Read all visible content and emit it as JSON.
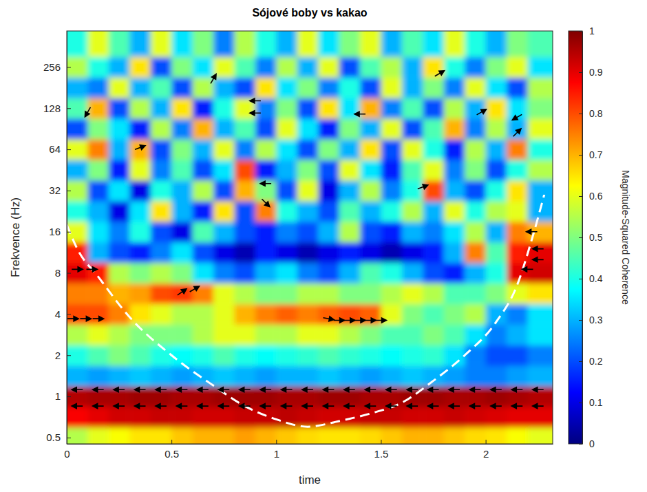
{
  "chart_data": {
    "type": "heatmap",
    "title": "Sójové boby vs kakao",
    "x_label": "time",
    "y_label": "Frekvence (Hz)",
    "log": "y",
    "xlim": [
      0,
      2.32
    ],
    "ylim": [
      0.45,
      470
    ],
    "xticks": [
      0,
      0.5,
      1,
      1.5,
      2
    ],
    "yticks": [
      0.5,
      1,
      2,
      4,
      8,
      16,
      32,
      64,
      128,
      256
    ],
    "x": [
      0.05,
      0.15,
      0.25,
      0.35,
      0.45,
      0.55,
      0.65,
      0.75,
      0.85,
      0.95,
      1.05,
      1.15,
      1.25,
      1.35,
      1.45,
      1.55,
      1.65,
      1.75,
      1.85,
      1.95,
      2.05,
      2.15,
      2.25
    ],
    "y": [
      0.5,
      0.71,
      1,
      1.41,
      2,
      2.83,
      4,
      5.66,
      8,
      11.3,
      16,
      22.6,
      32,
      45.3,
      64,
      90.5,
      128,
      181,
      256,
      362
    ],
    "values": [
      [
        0.55,
        0.6,
        0.62,
        0.65,
        0.65,
        0.68,
        0.7,
        0.7,
        0.72,
        0.7,
        0.68,
        0.66,
        0.65,
        0.65,
        0.66,
        0.68,
        0.7,
        0.7,
        0.68,
        0.66,
        0.65,
        0.62,
        0.6
      ],
      [
        0.88,
        0.9,
        0.92,
        0.92,
        0.93,
        0.93,
        0.92,
        0.92,
        0.93,
        0.93,
        0.94,
        0.93,
        0.92,
        0.92,
        0.93,
        0.93,
        0.92,
        0.92,
        0.93,
        0.92,
        0.91,
        0.9,
        0.9
      ],
      [
        0.95,
        0.96,
        0.96,
        0.97,
        0.97,
        0.96,
        0.96,
        0.97,
        0.97,
        0.97,
        0.96,
        0.96,
        0.97,
        0.97,
        0.96,
        0.96,
        0.97,
        0.97,
        0.96,
        0.96,
        0.97,
        0.96,
        0.95
      ],
      [
        0.3,
        0.28,
        0.3,
        0.32,
        0.3,
        0.28,
        0.3,
        0.32,
        0.3,
        0.28,
        0.3,
        0.3,
        0.32,
        0.3,
        0.28,
        0.3,
        0.32,
        0.3,
        0.28,
        0.25,
        0.25,
        0.28,
        0.3
      ],
      [
        0.4,
        0.45,
        0.5,
        0.45,
        0.4,
        0.38,
        0.4,
        0.45,
        0.4,
        0.38,
        0.4,
        0.42,
        0.45,
        0.42,
        0.4,
        0.38,
        0.4,
        0.42,
        0.35,
        0.25,
        0.2,
        0.2,
        0.25
      ],
      [
        0.55,
        0.6,
        0.55,
        0.5,
        0.5,
        0.5,
        0.55,
        0.6,
        0.6,
        0.55,
        0.55,
        0.6,
        0.6,
        0.55,
        0.5,
        0.45,
        0.45,
        0.5,
        0.45,
        0.35,
        0.25,
        0.3,
        0.35
      ],
      [
        0.8,
        0.8,
        0.75,
        0.65,
        0.6,
        0.55,
        0.55,
        0.6,
        0.7,
        0.75,
        0.78,
        0.75,
        0.78,
        0.8,
        0.78,
        0.6,
        0.5,
        0.45,
        0.5,
        0.55,
        0.3,
        0.25,
        0.35
      ],
      [
        0.75,
        0.75,
        0.7,
        0.72,
        0.8,
        0.82,
        0.75,
        0.6,
        0.55,
        0.5,
        0.5,
        0.55,
        0.55,
        0.5,
        0.5,
        0.55,
        0.6,
        0.55,
        0.45,
        0.45,
        0.5,
        0.6,
        0.65
      ],
      [
        0.9,
        0.85,
        0.55,
        0.5,
        0.55,
        0.5,
        0.35,
        0.25,
        0.2,
        0.3,
        0.35,
        0.25,
        0.2,
        0.3,
        0.45,
        0.4,
        0.3,
        0.2,
        0.15,
        0.3,
        0.4,
        0.9,
        0.92
      ],
      [
        0.85,
        0.3,
        0.2,
        0.15,
        0.25,
        0.35,
        0.2,
        0.1,
        0.05,
        0.15,
        0.1,
        0.05,
        0.1,
        0.15,
        0.1,
        0.05,
        0.1,
        0.15,
        0.3,
        0.75,
        0.45,
        0.85,
        0.9
      ],
      [
        0.6,
        0.35,
        0.25,
        0.4,
        0.2,
        0.1,
        0.45,
        0.3,
        0.2,
        0.15,
        0.25,
        0.2,
        0.3,
        0.55,
        0.2,
        0.15,
        0.3,
        0.25,
        0.35,
        0.55,
        0.3,
        0.75,
        0.7
      ],
      [
        0.4,
        0.3,
        0.1,
        0.35,
        0.65,
        0.3,
        0.15,
        0.65,
        0.2,
        0.75,
        0.4,
        0.3,
        0.2,
        0.45,
        0.3,
        0.4,
        0.55,
        0.3,
        0.6,
        0.4,
        0.55,
        0.6,
        0.3
      ],
      [
        0.55,
        0.2,
        0.35,
        0.1,
        0.4,
        0.3,
        0.55,
        0.2,
        0.7,
        0.5,
        0.2,
        0.6,
        0.1,
        0.3,
        0.55,
        0.25,
        0.4,
        0.8,
        0.3,
        0.2,
        0.4,
        0.65,
        0.3
      ],
      [
        0.3,
        0.5,
        0.15,
        0.6,
        0.25,
        0.45,
        0.2,
        0.35,
        0.8,
        0.15,
        0.3,
        0.5,
        0.2,
        0.6,
        0.35,
        0.15,
        0.45,
        0.6,
        0.25,
        0.5,
        0.2,
        0.4,
        0.55
      ],
      [
        0.6,
        0.75,
        0.3,
        0.7,
        0.2,
        0.5,
        0.3,
        0.6,
        0.25,
        0.55,
        0.35,
        0.2,
        0.5,
        0.3,
        0.65,
        0.2,
        0.6,
        0.4,
        0.15,
        0.55,
        0.3,
        0.75,
        0.4
      ],
      [
        0.2,
        0.5,
        0.35,
        0.15,
        0.55,
        0.25,
        0.7,
        0.3,
        0.45,
        0.2,
        0.6,
        0.35,
        0.15,
        0.5,
        0.3,
        0.6,
        0.2,
        0.45,
        0.7,
        0.25,
        0.55,
        0.3,
        0.6
      ],
      [
        0.45,
        0.7,
        0.2,
        0.55,
        0.3,
        0.65,
        0.15,
        0.4,
        0.6,
        0.25,
        0.5,
        0.2,
        0.65,
        0.35,
        0.7,
        0.25,
        0.45,
        0.2,
        0.55,
        0.3,
        0.65,
        0.35,
        0.5
      ],
      [
        0.3,
        0.25,
        0.6,
        0.3,
        0.45,
        0.2,
        0.55,
        0.3,
        0.2,
        0.65,
        0.35,
        0.5,
        0.25,
        0.4,
        0.2,
        0.6,
        0.3,
        0.5,
        0.25,
        0.6,
        0.35,
        0.2,
        0.55
      ],
      [
        0.55,
        0.4,
        0.3,
        0.65,
        0.2,
        0.5,
        0.35,
        0.6,
        0.45,
        0.25,
        0.55,
        0.3,
        0.6,
        0.2,
        0.45,
        0.55,
        0.3,
        0.65,
        0.4,
        0.25,
        0.5,
        0.6,
        0.35
      ],
      [
        0.4,
        0.6,
        0.45,
        0.3,
        0.6,
        0.35,
        0.5,
        0.25,
        0.55,
        0.4,
        0.3,
        0.6,
        0.35,
        0.5,
        0.6,
        0.3,
        0.45,
        0.35,
        0.6,
        0.4,
        0.3,
        0.5,
        0.45
      ]
    ],
    "colorbar": {
      "range": [
        0,
        1
      ],
      "ticks": [
        0,
        0.1,
        0.2,
        0.3,
        0.4,
        0.5,
        0.6,
        0.7,
        0.8,
        0.9,
        1
      ],
      "label": "Magnitude-Squared Coherence"
    },
    "coi": {
      "x": [
        0,
        0.05,
        0.15,
        0.3,
        0.5,
        0.7,
        0.85,
        1.0,
        1.15,
        1.3,
        1.45,
        1.6,
        1.75,
        1.9,
        2.05,
        2.15,
        2.22,
        2.28
      ],
      "y": [
        18,
        12,
        7.5,
        3.8,
        2.0,
        1.2,
        0.85,
        0.68,
        0.6,
        0.66,
        0.75,
        0.9,
        1.3,
        2.0,
        3.5,
        6.5,
        14,
        30
      ]
    },
    "arrows": [
      {
        "x": 0.05,
        "y": 0.85,
        "phase": 180
      },
      {
        "x": 0.15,
        "y": 0.85,
        "phase": 180
      },
      {
        "x": 0.25,
        "y": 0.85,
        "phase": 180
      },
      {
        "x": 0.35,
        "y": 0.85,
        "phase": 180
      },
      {
        "x": 0.45,
        "y": 0.85,
        "phase": 180
      },
      {
        "x": 0.55,
        "y": 0.85,
        "phase": 180
      },
      {
        "x": 0.65,
        "y": 0.85,
        "phase": 180
      },
      {
        "x": 0.75,
        "y": 0.85,
        "phase": 180
      },
      {
        "x": 0.85,
        "y": 0.85,
        "phase": 180
      },
      {
        "x": 0.95,
        "y": 0.85,
        "phase": 180
      },
      {
        "x": 1.05,
        "y": 0.85,
        "phase": 180
      },
      {
        "x": 1.15,
        "y": 0.85,
        "phase": 180
      },
      {
        "x": 1.25,
        "y": 0.85,
        "phase": 180
      },
      {
        "x": 1.35,
        "y": 0.85,
        "phase": 180
      },
      {
        "x": 1.45,
        "y": 0.85,
        "phase": 180
      },
      {
        "x": 1.55,
        "y": 0.85,
        "phase": 180
      },
      {
        "x": 1.65,
        "y": 0.85,
        "phase": 180
      },
      {
        "x": 1.75,
        "y": 0.85,
        "phase": 180
      },
      {
        "x": 1.85,
        "y": 0.85,
        "phase": 180
      },
      {
        "x": 1.95,
        "y": 0.85,
        "phase": 180
      },
      {
        "x": 2.05,
        "y": 0.85,
        "phase": 180
      },
      {
        "x": 2.15,
        "y": 0.85,
        "phase": 180
      },
      {
        "x": 2.25,
        "y": 0.85,
        "phase": 180
      },
      {
        "x": 0.05,
        "y": 1.12,
        "phase": 180
      },
      {
        "x": 0.15,
        "y": 1.12,
        "phase": 180
      },
      {
        "x": 0.25,
        "y": 1.12,
        "phase": 180
      },
      {
        "x": 0.35,
        "y": 1.12,
        "phase": 180
      },
      {
        "x": 0.45,
        "y": 1.12,
        "phase": 180
      },
      {
        "x": 0.55,
        "y": 1.12,
        "phase": 180
      },
      {
        "x": 0.65,
        "y": 1.12,
        "phase": 180
      },
      {
        "x": 0.75,
        "y": 1.12,
        "phase": 180
      },
      {
        "x": 0.85,
        "y": 1.12,
        "phase": 180
      },
      {
        "x": 0.95,
        "y": 1.12,
        "phase": 180
      },
      {
        "x": 1.05,
        "y": 1.12,
        "phase": 180
      },
      {
        "x": 1.15,
        "y": 1.12,
        "phase": 180
      },
      {
        "x": 1.25,
        "y": 1.12,
        "phase": 180
      },
      {
        "x": 1.35,
        "y": 1.12,
        "phase": 180
      },
      {
        "x": 1.45,
        "y": 1.12,
        "phase": 180
      },
      {
        "x": 1.55,
        "y": 1.12,
        "phase": 180
      },
      {
        "x": 1.65,
        "y": 1.12,
        "phase": 180
      },
      {
        "x": 1.75,
        "y": 1.12,
        "phase": 180
      },
      {
        "x": 1.85,
        "y": 1.12,
        "phase": 180
      },
      {
        "x": 1.95,
        "y": 1.12,
        "phase": 180
      },
      {
        "x": 2.05,
        "y": 1.12,
        "phase": 180
      },
      {
        "x": 2.15,
        "y": 1.12,
        "phase": 180
      },
      {
        "x": 2.25,
        "y": 1.12,
        "phase": 180
      },
      {
        "x": 0.03,
        "y": 3.7,
        "phase": 0
      },
      {
        "x": 0.09,
        "y": 3.7,
        "phase": 0
      },
      {
        "x": 0.15,
        "y": 3.7,
        "phase": 0
      },
      {
        "x": 0.05,
        "y": 8.5,
        "phase": 0
      },
      {
        "x": 0.12,
        "y": 8.5,
        "phase": 0
      },
      {
        "x": 0.55,
        "y": 5.8,
        "phase": 35
      },
      {
        "x": 0.61,
        "y": 6.1,
        "phase": 30
      },
      {
        "x": 1.25,
        "y": 3.7,
        "phase": -10
      },
      {
        "x": 1.3,
        "y": 3.6,
        "phase": 0
      },
      {
        "x": 1.35,
        "y": 3.6,
        "phase": 0
      },
      {
        "x": 1.4,
        "y": 3.6,
        "phase": 0
      },
      {
        "x": 1.45,
        "y": 3.6,
        "phase": 0
      },
      {
        "x": 1.5,
        "y": 3.6,
        "phase": 0
      },
      {
        "x": 2.2,
        "y": 8.5,
        "phase": 180
      },
      {
        "x": 2.25,
        "y": 10,
        "phase": 180
      },
      {
        "x": 2.25,
        "y": 12,
        "phase": 180
      },
      {
        "x": 2.22,
        "y": 16,
        "phase": 180
      },
      {
        "x": 0.95,
        "y": 36,
        "phase": 180
      },
      {
        "x": 0.95,
        "y": 26,
        "phase": -45
      },
      {
        "x": 0.35,
        "y": 66,
        "phase": 20
      },
      {
        "x": 0.1,
        "y": 120,
        "phase": -120
      },
      {
        "x": 0.7,
        "y": 210,
        "phase": 60
      },
      {
        "x": 0.9,
        "y": 145,
        "phase": 180
      },
      {
        "x": 0.9,
        "y": 118,
        "phase": 180
      },
      {
        "x": 1.4,
        "y": 116,
        "phase": 180
      },
      {
        "x": 1.7,
        "y": 34,
        "phase": 20
      },
      {
        "x": 1.78,
        "y": 230,
        "phase": 30
      },
      {
        "x": 1.98,
        "y": 120,
        "phase": 30
      },
      {
        "x": 2.15,
        "y": 110,
        "phase": -150
      },
      {
        "x": 2.15,
        "y": 85,
        "phase": 45
      }
    ]
  }
}
